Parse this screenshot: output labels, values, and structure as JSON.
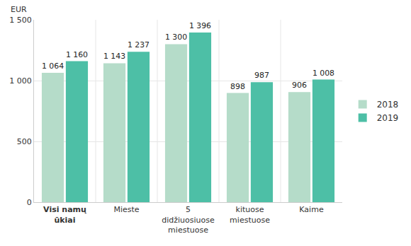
{
  "chart_data": {
    "type": "bar",
    "y_label": "EUR",
    "categories": [
      "Visi namų ūkiai",
      "Mieste",
      "5 didžiuosiuose miestuose",
      "kituose miestuose",
      "Kaime"
    ],
    "series": [
      {
        "name": "2018",
        "color": "#b5dcc9",
        "values": [
          1064,
          1143,
          1300,
          898,
          906
        ],
        "value_labels": [
          "1 064",
          "1 143",
          "1 300",
          "898",
          "906"
        ]
      },
      {
        "name": "2019",
        "color": "#4dbfa6",
        "values": [
          1160,
          1237,
          1396,
          987,
          1008
        ],
        "value_labels": [
          "1 160",
          "1 237",
          "1 396",
          "987",
          "1 008"
        ]
      }
    ],
    "ylim": [
      0,
      1500
    ],
    "yticks": [
      0,
      500,
      {
        "value": 1000,
        "label": "1 000"
      },
      {
        "value": 1500,
        "label": "1 500"
      }
    ],
    "grid": true,
    "legend": "right",
    "data_labels": true
  }
}
